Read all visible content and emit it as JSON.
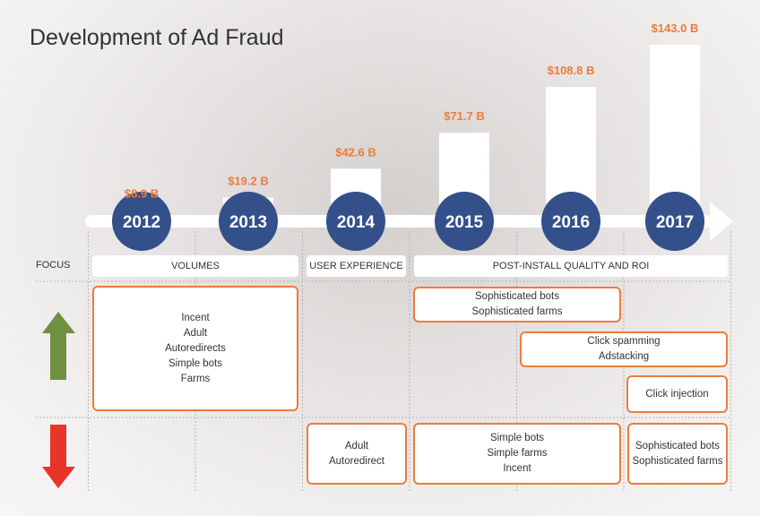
{
  "chart_data": {
    "type": "bar",
    "title": "Development of Ad Fraud",
    "categories": [
      "2012",
      "2013",
      "2014",
      "2015",
      "2016",
      "2017"
    ],
    "values": [
      8.9,
      19.2,
      42.6,
      71.7,
      108.8,
      143.0
    ],
    "value_labels": [
      "$8.9 B",
      "$19.2 B",
      "$42.6 B",
      "$71.7 B",
      "$108.8 B",
      "$143.0 B"
    ],
    "xlabel": "",
    "ylabel": "",
    "ylim": [
      0,
      143.0
    ],
    "grid": false,
    "legend": "none"
  },
  "focus": {
    "heading": "FOCUS",
    "segments": [
      "VOLUMES",
      "USER EXPERIENCE",
      "POST-INSTALL QUALITY AND ROI"
    ]
  },
  "rising": [
    {
      "items": [
        "Incent",
        "Adult",
        "Autoredirects",
        "Simple bots",
        "Farms"
      ]
    },
    {
      "items": [
        "Sophisticated bots",
        "Sophisticated farms"
      ]
    },
    {
      "items": [
        "Click spamming",
        "Adstacking"
      ]
    },
    {
      "items": [
        "Click injection"
      ]
    }
  ],
  "declining": [
    {
      "items": [
        "Adult",
        "Autoredirect"
      ]
    },
    {
      "items": [
        "Simple bots",
        "Simple farms",
        "Incent"
      ]
    },
    {
      "items": [
        "Sophisticated bots",
        "Sophisticated farms"
      ]
    }
  ],
  "colors": {
    "year_circle": "#33508a",
    "value_label": "#ee7b3c",
    "box_border": "#ee7b3c",
    "up_arrow": "#6f9040",
    "down_arrow": "#e8352a"
  }
}
